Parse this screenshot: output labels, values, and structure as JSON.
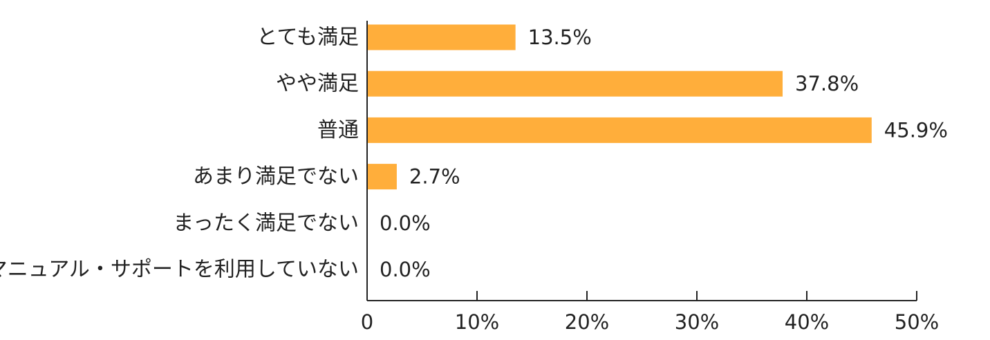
{
  "chart_data": {
    "type": "bar",
    "orientation": "horizontal",
    "categories": [
      "とても満足",
      "やや満足",
      "普通",
      "あまり満足でない",
      "まったく満足でない",
      "マニュアル・サポートを利用していない"
    ],
    "values": [
      13.5,
      37.8,
      45.9,
      2.7,
      0.0,
      0.0
    ],
    "value_labels": [
      "13.5%",
      "37.8%",
      "45.9%",
      "2.7%",
      "0.0%",
      "0.0%"
    ],
    "x_ticks": [
      "0",
      "10%",
      "20%",
      "30%",
      "40%",
      "50%"
    ],
    "xlim": [
      0,
      50
    ],
    "title": "",
    "xlabel": "",
    "ylabel": "",
    "grid": false,
    "legend": "none",
    "colors": {
      "bar": "#FFAE3B",
      "axis": "#222222",
      "text": "#222222"
    }
  }
}
